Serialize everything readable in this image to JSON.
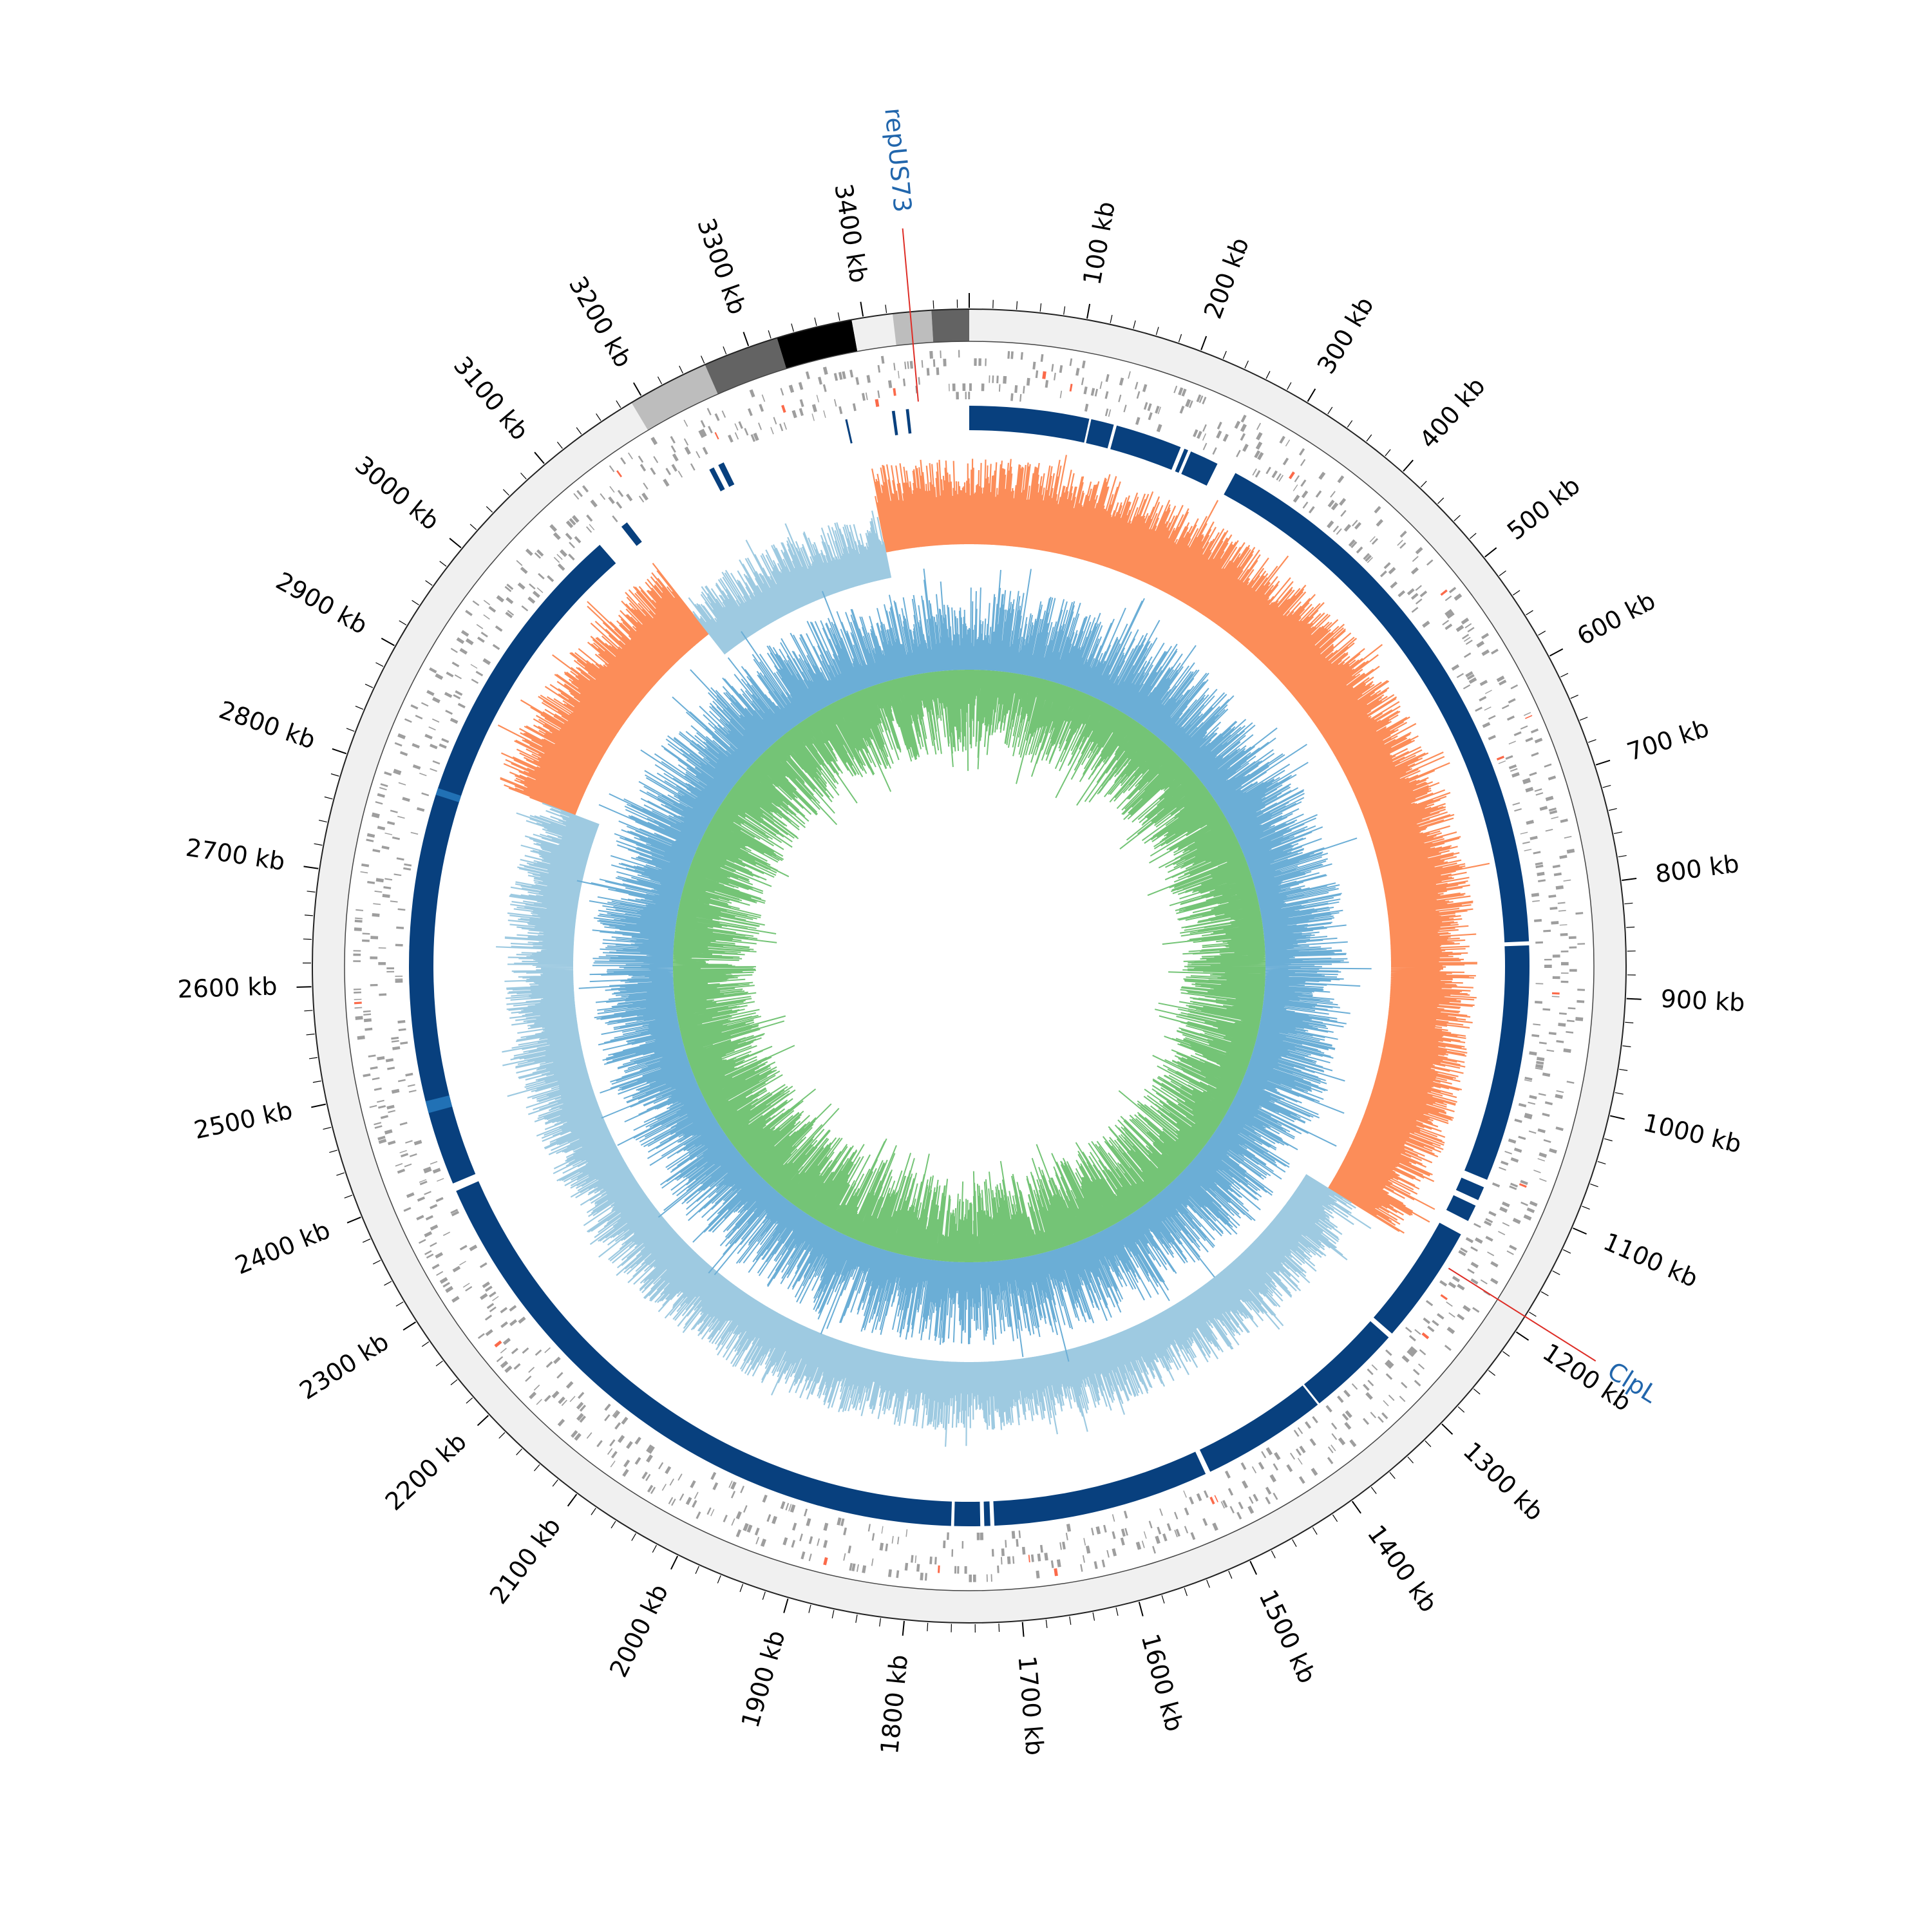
{
  "figure": {
    "genome_length_kb": 3490,
    "ticks": {
      "unit": "kb",
      "major_values_kb": [
        100,
        200,
        300,
        400,
        500,
        600,
        700,
        800,
        900,
        1000,
        1100,
        1200,
        1300,
        1400,
        1500,
        1600,
        1700,
        1800,
        1900,
        2000,
        2100,
        2200,
        2300,
        2400,
        2500,
        2600,
        2700,
        2800,
        2900,
        3000,
        3100,
        3200,
        3300,
        3400
      ],
      "major_labels": [
        "100 kb",
        "200 kb",
        "300 kb",
        "400 kb",
        "500 kb",
        "600 kb",
        "700 kb",
        "800 kb",
        "900 kb",
        "1000 kb",
        "1100 kb",
        "1200 kb",
        "1300 kb",
        "1400 kb",
        "1500 kb",
        "1600 kb",
        "1700 kb",
        "1800 kb",
        "1900 kb",
        "2000 kb",
        "2100 kb",
        "2200 kb",
        "2300 kb",
        "2400 kb",
        "2500 kb",
        "2600 kb",
        "2700 kb",
        "2800 kb",
        "2900 kb",
        "3000 kb",
        "3100 kb",
        "3200 kb",
        "3300 kb",
        "3400 kb"
      ],
      "minor_step_kb": 20
    },
    "annotations": [
      {
        "label": "repUS73",
        "position_kb": 3440
      },
      {
        "label": "ClpL",
        "position_kb": 1185
      }
    ],
    "contig_blocks_kb": [
      {
        "start": 0,
        "end": 3190,
        "color": "#f0f0f0"
      },
      {
        "start": 3190,
        "end": 3260,
        "color": "#bdbdbd"
      },
      {
        "start": 3260,
        "end": 3325,
        "color": "#636363"
      },
      {
        "start": 3325,
        "end": 3390,
        "color": "#000000"
      },
      {
        "start": 3390,
        "end": 3425,
        "color": "#f0f0f0"
      },
      {
        "start": 3425,
        "end": 3458,
        "color": "#bdbdbd"
      },
      {
        "start": 3458,
        "end": 3490,
        "color": "#636363"
      }
    ],
    "colors": {
      "gene_features": "#9e9e9e",
      "highlight_features": "#fb6a4a",
      "alignment": "#08407e",
      "alignment_alt": "#2171b5",
      "gc_skew_positive": "#fc8d59",
      "gc_skew_negative": "#9ecae1",
      "gc_content_outer": "#6baed6",
      "gc_content_inner": "#74c476",
      "annotation_line": "#de2d26"
    },
    "alignment_segments_kb": [
      [
        0,
        120
      ],
      [
        122,
        145
      ],
      [
        148,
        215
      ],
      [
        219,
        223
      ],
      [
        226,
        255
      ],
      [
        275,
        1090
      ],
      [
        1098,
        1112
      ],
      [
        1118,
        1135
      ],
      [
        1150,
        1270
      ],
      [
        1275,
        1370
      ],
      [
        1372,
        1498
      ],
      [
        1503,
        1720
      ],
      [
        1724,
        1730
      ],
      [
        1734,
        1760
      ],
      [
        1763,
        2388
      ],
      [
        2396,
        3090
      ],
      [
        3118,
        3125
      ],
      [
        3222,
        3227
      ],
      [
        3232,
        3238
      ],
      [
        3366,
        3368
      ],
      [
        3413,
        3416
      ],
      [
        3427,
        3430
      ]
    ],
    "alignment_alt_segments_kb": [
      [
        2470,
        2482
      ],
      [
        2790,
        2797
      ]
    ],
    "alignment_gaps_kb": [
      850
    ],
    "gc_skew_sign_change_kb": [
      1180,
      2820,
      3380
    ]
  }
}
